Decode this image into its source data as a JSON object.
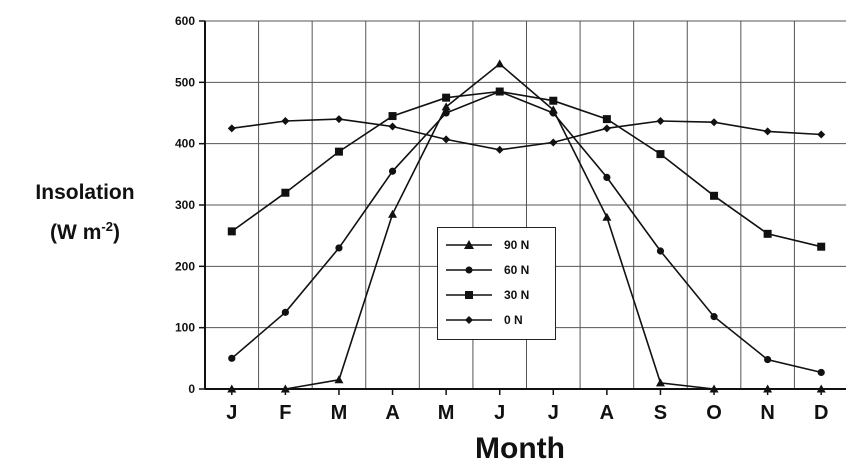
{
  "chart_data": {
    "type": "line",
    "categories": [
      "J",
      "F",
      "M",
      "A",
      "M",
      "J",
      "J",
      "A",
      "S",
      "O",
      "N",
      "D"
    ],
    "xlabel": "Month",
    "ylabel_line1": "Insolation",
    "ylabel_unit": "(W m",
    "ylabel_exp": "-2",
    "ylabel_close": ")",
    "ylim": [
      0,
      600
    ],
    "yticks": [
      "0",
      "100",
      "200",
      "300",
      "400",
      "500",
      "600"
    ],
    "grid": true,
    "legend_position": "center",
    "series": [
      {
        "name": "90 N",
        "marker": "triangle",
        "values": [
          0,
          0,
          15,
          285,
          460,
          530,
          455,
          280,
          10,
          0,
          0,
          0
        ]
      },
      {
        "name": "60 N",
        "marker": "dot",
        "values": [
          50,
          125,
          230,
          355,
          450,
          485,
          450,
          345,
          225,
          118,
          48,
          27
        ]
      },
      {
        "name": "30 N",
        "marker": "square",
        "values": [
          257,
          320,
          387,
          445,
          475,
          485,
          470,
          440,
          383,
          315,
          253,
          232
        ]
      },
      {
        "name": "0 N",
        "marker": "diamond",
        "values": [
          425,
          437,
          440,
          428,
          407,
          390,
          402,
          425,
          437,
          435,
          420,
          415
        ]
      }
    ],
    "colors": {
      "line": "#111111",
      "grid": "#555555",
      "background": "#ffffff"
    }
  }
}
